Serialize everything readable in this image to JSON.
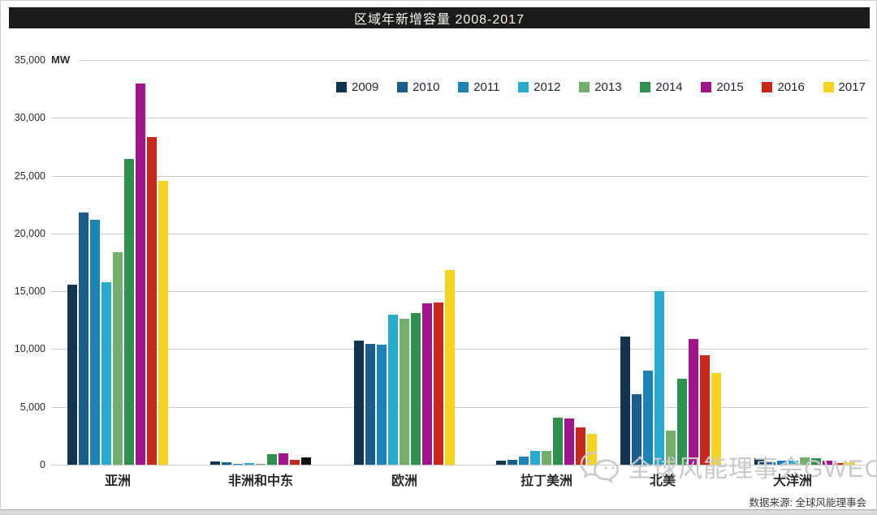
{
  "title_bar": {
    "text": "区域年新增容量 2008-2017"
  },
  "y_axis": {
    "unit": "MW",
    "tick_labels_top_to_bottom": [
      "35,000",
      "30,000",
      "25,000",
      "20,000",
      "15,000",
      "10,000",
      "5,000",
      "0"
    ],
    "max": 35000,
    "step": 5000
  },
  "chart_data": {
    "type": "bar",
    "title": "区域年新增容量 2008-2017",
    "ylabel": "MW",
    "ylim": [
      0,
      35000
    ],
    "grid": true,
    "legend_position": "top",
    "categories": [
      "亚洲",
      "非洲和中东",
      "欧洲",
      "拉丁美洲",
      "北美",
      "大洋洲"
    ],
    "series": [
      {
        "name": "2009",
        "color": "#12344e",
        "values": [
          15600,
          250,
          10700,
          350,
          11050,
          550
        ]
      },
      {
        "name": "2010",
        "color": "#1b5e8e",
        "values": [
          21800,
          210,
          10450,
          400,
          6100,
          180
        ]
      },
      {
        "name": "2011",
        "color": "#1d83b6",
        "values": [
          21200,
          80,
          10350,
          700,
          8150,
          340
        ]
      },
      {
        "name": "2012",
        "color": "#29a9ce",
        "values": [
          15800,
          150,
          12950,
          1200,
          15000,
          360
        ]
      },
      {
        "name": "2013",
        "color": "#74ae6d",
        "values": [
          18400,
          90,
          12600,
          1200,
          2950,
          650
        ]
      },
      {
        "name": "2014",
        "color": "#2e9150",
        "values": [
          26450,
          930,
          13100,
          4050,
          7400,
          560
        ]
      },
      {
        "name": "2015",
        "color": "#a0148c",
        "values": [
          33000,
          950,
          13950,
          4000,
          10900,
          380
        ]
      },
      {
        "name": "2016",
        "color": "#c8281c",
        "values": [
          28350,
          420,
          14050,
          3250,
          9450,
          140
        ]
      },
      {
        "name": "2017",
        "color": "#f4d41e",
        "values": [
          24550,
          620,
          16850,
          2700,
          7900,
          245
        ]
      }
    ],
    "bar_color_overrides": [
      {
        "series": "2017",
        "category": "非洲和中东",
        "color": "#101014"
      }
    ]
  },
  "watermark": {
    "text": "全球风能理事会GWEC"
  },
  "footer": {
    "source_text": "数据来源: 全球风能理事会"
  },
  "colors": {
    "title_bar_bg": "#1d1b19",
    "title_text": "#f7f5f0",
    "grid": "#cccccc",
    "axis_text": "#2a2a2a",
    "x_label_text": "#2a2927",
    "legend_text": "#1a2733",
    "watermark": "#c9c9c9",
    "source_text": "#3a3a3a",
    "bottom_strip_bg": "#dcdcdc"
  }
}
